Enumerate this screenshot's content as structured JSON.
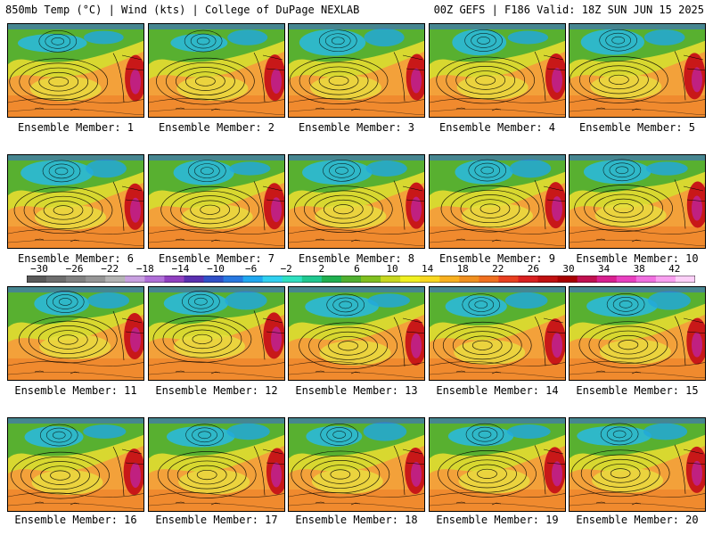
{
  "header": {
    "left": "850mb Temp (°C) | Wind (kts) | College of DuPage NEXLAB",
    "right": "00Z GEFS | F186 Valid: 18Z SUN JUN 15 2025"
  },
  "members": [
    {
      "label": "Ensemble Member: 1"
    },
    {
      "label": "Ensemble Member: 2"
    },
    {
      "label": "Ensemble Member: 3"
    },
    {
      "label": "Ensemble Member: 4"
    },
    {
      "label": "Ensemble Member: 5"
    },
    {
      "label": "Ensemble Member: 6"
    },
    {
      "label": "Ensemble Member: 7"
    },
    {
      "label": "Ensemble Member: 8"
    },
    {
      "label": "Ensemble Member: 9"
    },
    {
      "label": "Ensemble Member: 10"
    },
    {
      "label": "Ensemble Member: 11"
    },
    {
      "label": "Ensemble Member: 12"
    },
    {
      "label": "Ensemble Member: 13"
    },
    {
      "label": "Ensemble Member: 14"
    },
    {
      "label": "Ensemble Member: 15"
    },
    {
      "label": "Ensemble Member: 16"
    },
    {
      "label": "Ensemble Member: 17"
    },
    {
      "label": "Ensemble Member: 18"
    },
    {
      "label": "Ensemble Member: 19"
    },
    {
      "label": "Ensemble Member: 20"
    }
  ],
  "colorbar": {
    "labels": [
      "−30",
      "−26",
      "−22",
      "−18",
      "−14",
      "−10",
      "−6",
      "−2",
      "2",
      "6",
      "10",
      "14",
      "18",
      "22",
      "26",
      "30",
      "34",
      "38",
      "42"
    ],
    "colors": [
      "#5a5a5a",
      "#6e6e6e",
      "#828282",
      "#969696",
      "#b4b4b4",
      "#c8a0e0",
      "#b070d8",
      "#9040c0",
      "#5a30b0",
      "#3050c8",
      "#2878e0",
      "#20a8f0",
      "#30d0f0",
      "#30e0c0",
      "#20c890",
      "#20b050",
      "#50b030",
      "#80c020",
      "#c8d820",
      "#f0f020",
      "#f8d820",
      "#f8b020",
      "#f09020",
      "#f07020",
      "#e84020",
      "#d82020",
      "#c01010",
      "#a80000",
      "#c01050",
      "#d82090",
      "#e840c0",
      "#f070e0",
      "#f8a0f0",
      "#fcd0f8"
    ]
  }
}
